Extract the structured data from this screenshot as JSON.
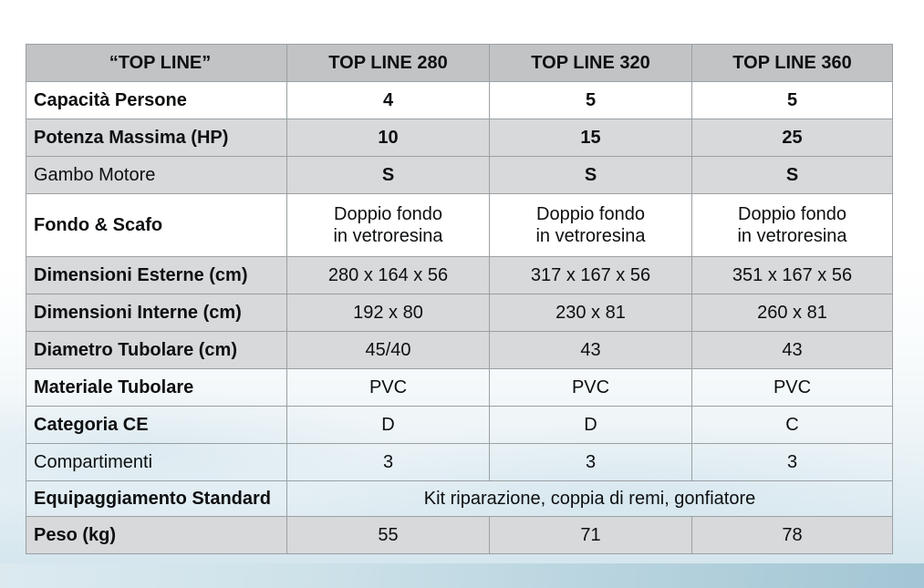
{
  "page": {
    "colors": {
      "header_bg": "#c1c3c5",
      "row_gray_bg": "#d8d9da",
      "border": "#9aa0a4",
      "sea_band": "#a3c5d4",
      "text": "#0d0f11"
    }
  },
  "table": {
    "header": {
      "col0": "“TOP LINE”",
      "col1": "TOP LINE 280",
      "col2": "TOP LINE 320",
      "col3": "TOP LINE 360"
    },
    "rows": [
      {
        "label": "Capacità Persone",
        "values": [
          "4",
          "5",
          "5"
        ]
      },
      {
        "label": "Potenza Massima (HP)",
        "values": [
          "10",
          "15",
          "25"
        ]
      },
      {
        "label": "Gambo Motore",
        "values": [
          "S",
          "S",
          "S"
        ]
      },
      {
        "label": "Fondo & Scafo",
        "values": [
          "Doppio fondo\nin vetroresina",
          "Doppio fondo\nin vetroresina",
          "Doppio fondo\nin vetroresina"
        ]
      },
      {
        "label": "Dimensioni Esterne (cm)",
        "values": [
          "280 x 164 x 56",
          "317 x 167 x 56",
          "351 x 167 x 56"
        ]
      },
      {
        "label": "Dimensioni Interne (cm)",
        "values": [
          "192 x 80",
          "230 x 81",
          "260 x 81"
        ]
      },
      {
        "label": "Diametro Tubolare (cm)",
        "values": [
          "45/40",
          "43",
          "43"
        ]
      },
      {
        "label": "Materiale Tubolare",
        "values": [
          "PVC",
          "PVC",
          "PVC"
        ]
      },
      {
        "label": "Categoria CE",
        "values": [
          "D",
          "D",
          "C"
        ]
      },
      {
        "label": "Compartimenti",
        "values": [
          "3",
          "3",
          "3"
        ]
      },
      {
        "label": "Equipaggiamento Standard",
        "merged_value": "Kit riparazione, coppia di remi, gonfiatore"
      },
      {
        "label": "Peso (kg)",
        "values": [
          "55",
          "71",
          "78"
        ]
      }
    ]
  }
}
